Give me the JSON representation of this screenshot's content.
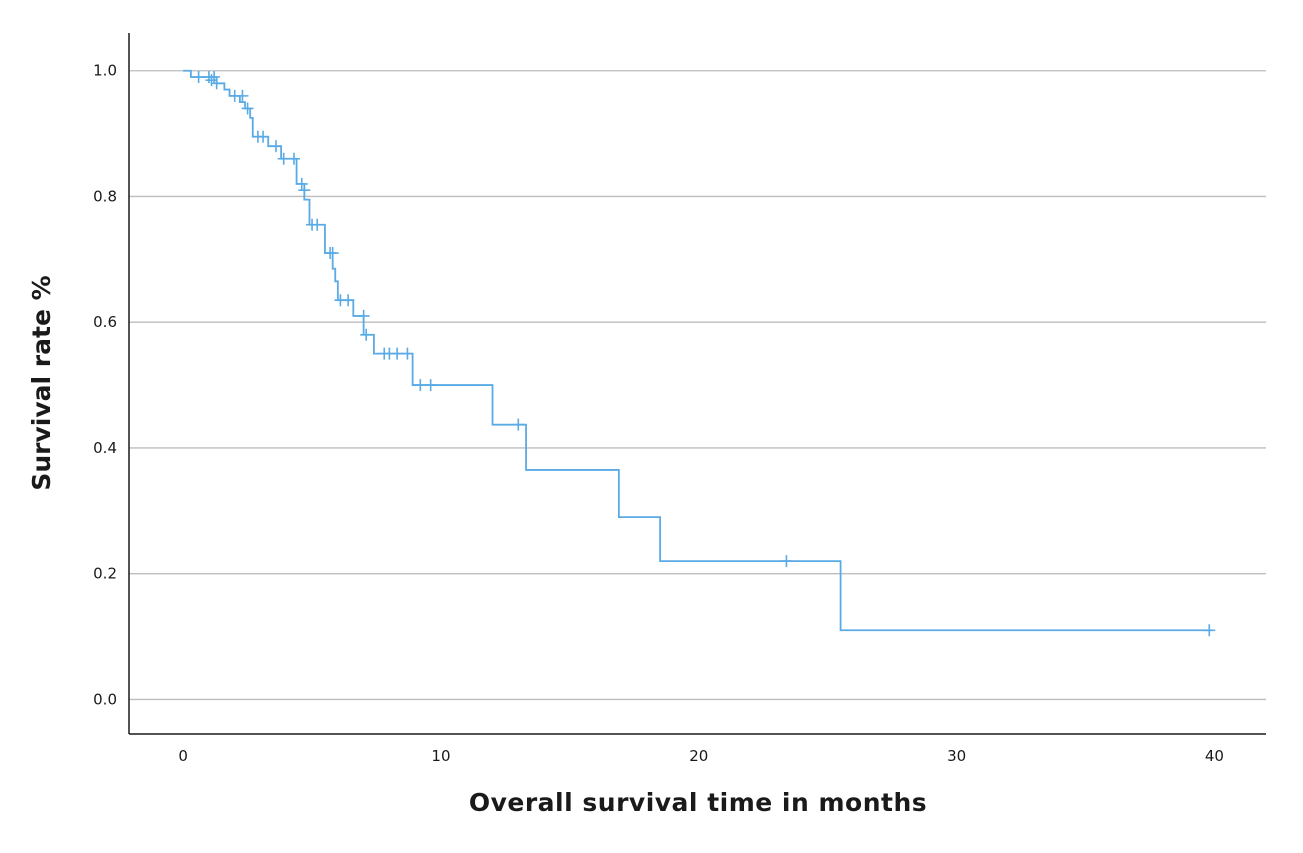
{
  "chart_data": {
    "type": "line",
    "title": "",
    "xlabel": "Overall survival time in months",
    "ylabel": "Survival rate %",
    "xlim": [
      -2.1,
      42
    ],
    "ylim": [
      -0.055,
      1.06
    ],
    "x_ticks": [
      0,
      10,
      20,
      30,
      40
    ],
    "y_ticks": [
      0.0,
      0.2,
      0.4,
      0.6,
      0.8,
      1.0
    ],
    "x_tick_labels": [
      "0",
      "10",
      "20",
      "30",
      "40"
    ],
    "y_tick_labels": [
      "0.0",
      "0.2",
      "0.4",
      "0.6",
      "0.8",
      "1.0"
    ],
    "grid": "horizontal",
    "line_color": "#5aaae6",
    "series": [
      {
        "step": [
          [
            0,
            1.0
          ],
          [
            0.3,
            0.99
          ],
          [
            1.3,
            0.98
          ],
          [
            1.6,
            0.97
          ],
          [
            1.8,
            0.96
          ],
          [
            2.2,
            0.95
          ],
          [
            2.4,
            0.94
          ],
          [
            2.6,
            0.925
          ],
          [
            2.7,
            0.895
          ],
          [
            3.3,
            0.88
          ],
          [
            3.8,
            0.86
          ],
          [
            4.4,
            0.82
          ],
          [
            4.7,
            0.795
          ],
          [
            4.9,
            0.755
          ],
          [
            5.5,
            0.71
          ],
          [
            5.8,
            0.685
          ],
          [
            5.9,
            0.665
          ],
          [
            6.0,
            0.635
          ],
          [
            6.6,
            0.61
          ],
          [
            7.0,
            0.58
          ],
          [
            7.4,
            0.55
          ],
          [
            8.9,
            0.5
          ],
          [
            12.0,
            0.437
          ],
          [
            13.3,
            0.365
          ],
          [
            16.9,
            0.29
          ],
          [
            18.5,
            0.22
          ],
          [
            25.5,
            0.11
          ],
          [
            39.9,
            0.11
          ]
        ],
        "censored": [
          [
            0.6,
            0.99
          ],
          [
            1.0,
            0.99
          ],
          [
            1.1,
            0.985
          ],
          [
            1.2,
            0.99
          ],
          [
            1.3,
            0.98
          ],
          [
            2.0,
            0.96
          ],
          [
            2.3,
            0.96
          ],
          [
            2.5,
            0.94
          ],
          [
            2.9,
            0.895
          ],
          [
            3.1,
            0.895
          ],
          [
            3.6,
            0.88
          ],
          [
            3.9,
            0.86
          ],
          [
            4.3,
            0.86
          ],
          [
            4.6,
            0.82
          ],
          [
            4.7,
            0.81
          ],
          [
            5.0,
            0.755
          ],
          [
            5.2,
            0.755
          ],
          [
            5.7,
            0.71
          ],
          [
            5.8,
            0.71
          ],
          [
            6.1,
            0.635
          ],
          [
            6.4,
            0.635
          ],
          [
            7.0,
            0.61
          ],
          [
            7.1,
            0.58
          ],
          [
            7.8,
            0.55
          ],
          [
            8.0,
            0.55
          ],
          [
            8.3,
            0.55
          ],
          [
            8.7,
            0.55
          ],
          [
            9.2,
            0.5
          ],
          [
            9.6,
            0.5
          ],
          [
            13.0,
            0.437
          ],
          [
            23.4,
            0.22
          ],
          [
            39.8,
            0.11
          ]
        ]
      }
    ]
  }
}
